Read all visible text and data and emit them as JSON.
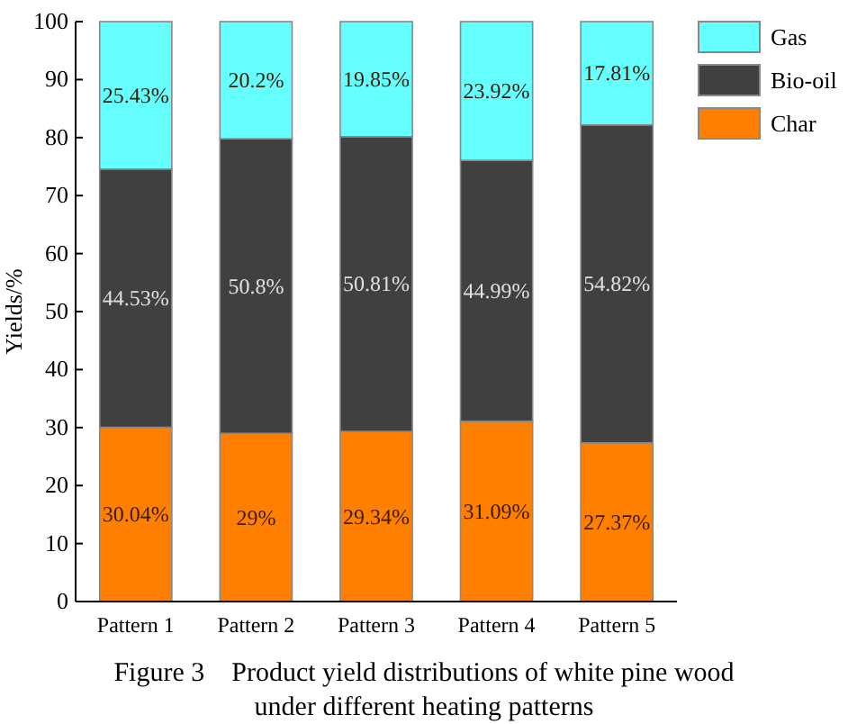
{
  "chart_data": {
    "type": "bar",
    "stacked": true,
    "title": "Figure 3    Product yield distributions of white pine wood under different heating patterns",
    "ylabel": "Yields/%",
    "categories": [
      "Pattern 1",
      "Pattern 2",
      "Pattern 3",
      "Pattern 4",
      "Pattern 5"
    ],
    "series": [
      {
        "name": "Char",
        "color": "#ff8000",
        "values": [
          30.04,
          29,
          29.34,
          31.09,
          27.37
        ],
        "value_labels": [
          "30.04%",
          "29%",
          "29.34%",
          "31.09%",
          "27.37%"
        ]
      },
      {
        "name": "Bio-oil",
        "color": "#404040",
        "values": [
          44.53,
          50.8,
          50.81,
          44.99,
          54.82
        ],
        "value_labels": [
          "44.53%",
          "50.8%",
          "50.81%",
          "44.99%",
          "54.82%"
        ]
      },
      {
        "name": "Gas",
        "color": "#66ffff",
        "values": [
          25.43,
          20.2,
          19.85,
          23.92,
          17.81
        ],
        "value_labels": [
          "25.43%",
          "20.2%",
          "19.85%",
          "23.92%",
          "17.81%"
        ]
      }
    ],
    "ylim": [
      0,
      100
    ],
    "yticks": [
      0,
      10,
      20,
      30,
      40,
      50,
      60,
      70,
      80,
      90,
      100
    ],
    "legend": "top right"
  }
}
